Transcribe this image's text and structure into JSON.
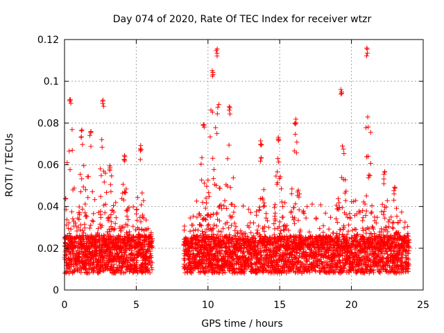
{
  "chart_data": {
    "type": "scatter",
    "title": "Day 074 of 2020, Rate Of TEC Index for receiver wtzr",
    "xlabel": "GPS time / hours",
    "ylabel": "ROTI / TECUs",
    "xlim": [
      0,
      25
    ],
    "ylim": [
      0,
      0.12
    ],
    "xticks": [
      0,
      5,
      10,
      15,
      20,
      25
    ],
    "xtick_labels": [
      "0",
      "5",
      "10",
      "15",
      "20",
      "25"
    ],
    "yticks": [
      0,
      0.02,
      0.04,
      0.06,
      0.08,
      0.1,
      0.12
    ],
    "ytick_labels": [
      "0",
      "0.02",
      "0.04",
      "0.06",
      "0.08",
      "0.1",
      "0.12"
    ],
    "grid": true,
    "marker": "plus",
    "series_color": "#ff0000",
    "coverage_hours": [
      [
        0,
        6.1
      ],
      [
        8.3,
        24
      ]
    ],
    "peaks": [
      {
        "x": 0.4,
        "y": 0.093
      },
      {
        "x": 1.2,
        "y": 0.077
      },
      {
        "x": 1.8,
        "y": 0.076
      },
      {
        "x": 2.7,
        "y": 0.092
      },
      {
        "x": 3.2,
        "y": 0.06
      },
      {
        "x": 4.2,
        "y": 0.066
      },
      {
        "x": 5.3,
        "y": 0.07
      },
      {
        "x": 9.7,
        "y": 0.082
      },
      {
        "x": 10.3,
        "y": 0.106
      },
      {
        "x": 10.6,
        "y": 0.116
      },
      {
        "x": 11.5,
        "y": 0.088
      },
      {
        "x": 13.7,
        "y": 0.073
      },
      {
        "x": 14.9,
        "y": 0.075
      },
      {
        "x": 16.1,
        "y": 0.083
      },
      {
        "x": 19.3,
        "y": 0.097
      },
      {
        "x": 21.1,
        "y": 0.116
      },
      {
        "x": 22.3,
        "y": 0.057
      },
      {
        "x": 23.0,
        "y": 0.05
      }
    ]
  }
}
